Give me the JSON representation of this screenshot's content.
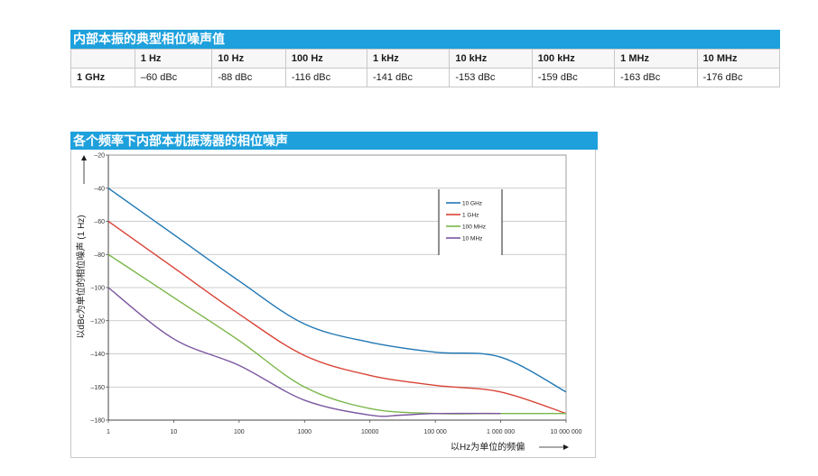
{
  "table": {
    "title": "内部本振的典型相位噪声值",
    "headers": [
      "",
      "1 Hz",
      "10 Hz",
      "100 Hz",
      "1 kHz",
      "10 kHz",
      "100 kHz",
      "1 MHz",
      "10 MHz"
    ],
    "row": {
      "label": "1 GHz",
      "values": [
        "–60 dBc",
        "-88 dBc",
        "-116 dBc",
        "-141 dBc",
        "-153 dBc",
        "-159 dBc",
        "-163 dBc",
        "-176 dBc"
      ]
    }
  },
  "chart_title": "各个频率下内部本机振荡器的相位噪声",
  "chart_data": {
    "type": "line",
    "title": "各个频率下内部本机振荡器的相位噪声",
    "xlabel": "以Hz为单位的频偏",
    "ylabel": "以dBc为单位的相位噪声 (1 Hz)",
    "x_scale": "log",
    "xlim": [
      1,
      10000000
    ],
    "ylim": [
      -180,
      -20
    ],
    "grid": true,
    "legend_position": "top-right",
    "x_tick_labels": [
      "1",
      "10",
      "100",
      "1000",
      "10000",
      "100 000",
      "1 000 000",
      "10 000 000"
    ],
    "y_tick_labels": [
      "–20",
      "–40",
      "–60",
      "–80",
      "–100",
      "–120",
      "–140",
      "–160",
      "–180"
    ],
    "series": [
      {
        "name": "10 GHz",
        "color": "#1f77b4",
        "x": [
          1,
          10,
          100,
          1000,
          10000,
          100000,
          1000000,
          10000000
        ],
        "y": [
          -40,
          -68,
          -96,
          -122,
          -133,
          -139,
          -142,
          -163
        ]
      },
      {
        "name": "1 GHz",
        "color": "#d94336",
        "x": [
          1,
          10,
          100,
          1000,
          10000,
          100000,
          1000000,
          10000000
        ],
        "y": [
          -60,
          -88,
          -116,
          -141,
          -153,
          -159,
          -163,
          -176
        ]
      },
      {
        "name": "100 MHz",
        "color": "#7ab648",
        "x": [
          1,
          10,
          100,
          1000,
          10000,
          100000,
          1000000,
          10000000
        ],
        "y": [
          -80,
          -106,
          -132,
          -160,
          -173,
          -176,
          -176,
          -176
        ]
      },
      {
        "name": "10 MHz",
        "color": "#7b56a0",
        "x": [
          1,
          10,
          100,
          1000,
          10000,
          30000,
          100000,
          1000000
        ],
        "y": [
          -100,
          -131,
          -147,
          -168,
          -177,
          -177,
          -176,
          -176
        ]
      }
    ]
  }
}
